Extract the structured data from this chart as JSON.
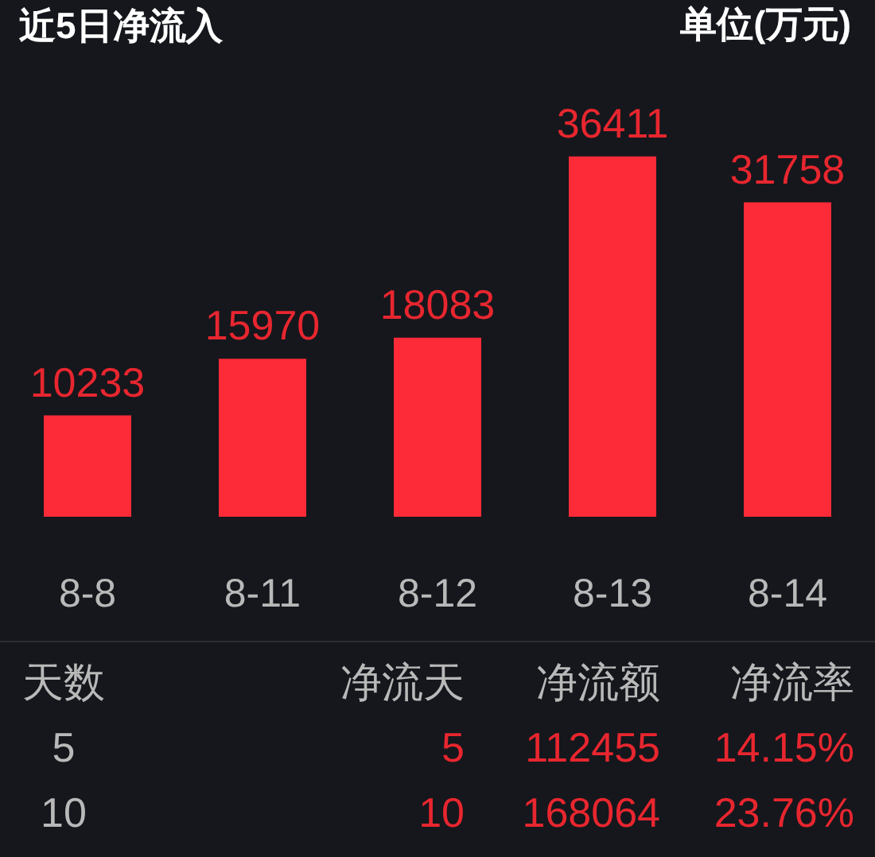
{
  "chart_data": [
    {
      "type": "bar",
      "title": "近5日净流入",
      "annotations": [
        "单位(万元)"
      ],
      "categories": [
        "8-8",
        "8-11",
        "8-12",
        "8-13",
        "8-14"
      ],
      "values": [
        10233,
        15970,
        18083,
        36411,
        31758
      ],
      "color": "#fd2a38",
      "data_labels": true,
      "tick_labels": "x"
    },
    {
      "type": "other",
      "annotations": [
        "天数",
        "净流天",
        "净流额",
        "净流率",
        "5",
        "5",
        "112455",
        "14.15%",
        "10",
        "10",
        "168064",
        "23.76%"
      ]
    }
  ]
}
